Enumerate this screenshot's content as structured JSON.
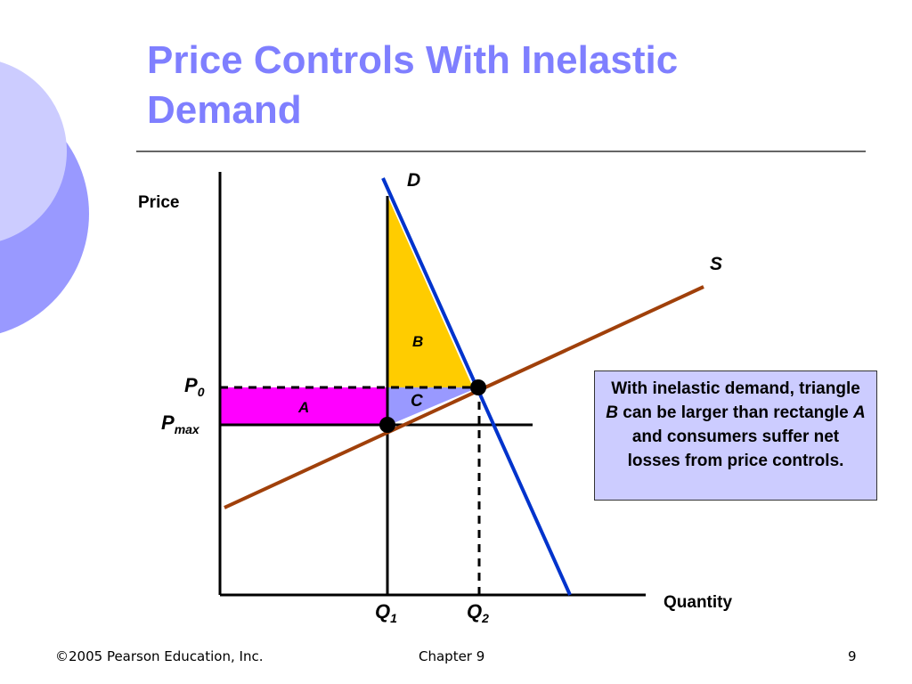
{
  "title": "Price Controls With Inelastic Demand",
  "diagram": {
    "y_axis_label": "Price",
    "x_axis_label": "Quantity",
    "demand_label": "D",
    "supply_label": "S",
    "area_a": "A",
    "area_b": "B",
    "area_c": "C",
    "p0": {
      "main": "P",
      "sub": "0"
    },
    "pmax": {
      "main": "P",
      "sub": "max"
    },
    "q1": {
      "main": "Q",
      "sub": "1"
    },
    "q2": {
      "main": "Q",
      "sub": "2"
    }
  },
  "note": [
    "With inelastic demand, triangle ",
    "B",
    " can be larger than rectangle ",
    "A",
    " and consumers suffer net losses from price controls."
  ],
  "footer": {
    "copyright": "©2005 Pearson Education, Inc.",
    "chapter": "Chapter 9",
    "page": "9"
  }
}
